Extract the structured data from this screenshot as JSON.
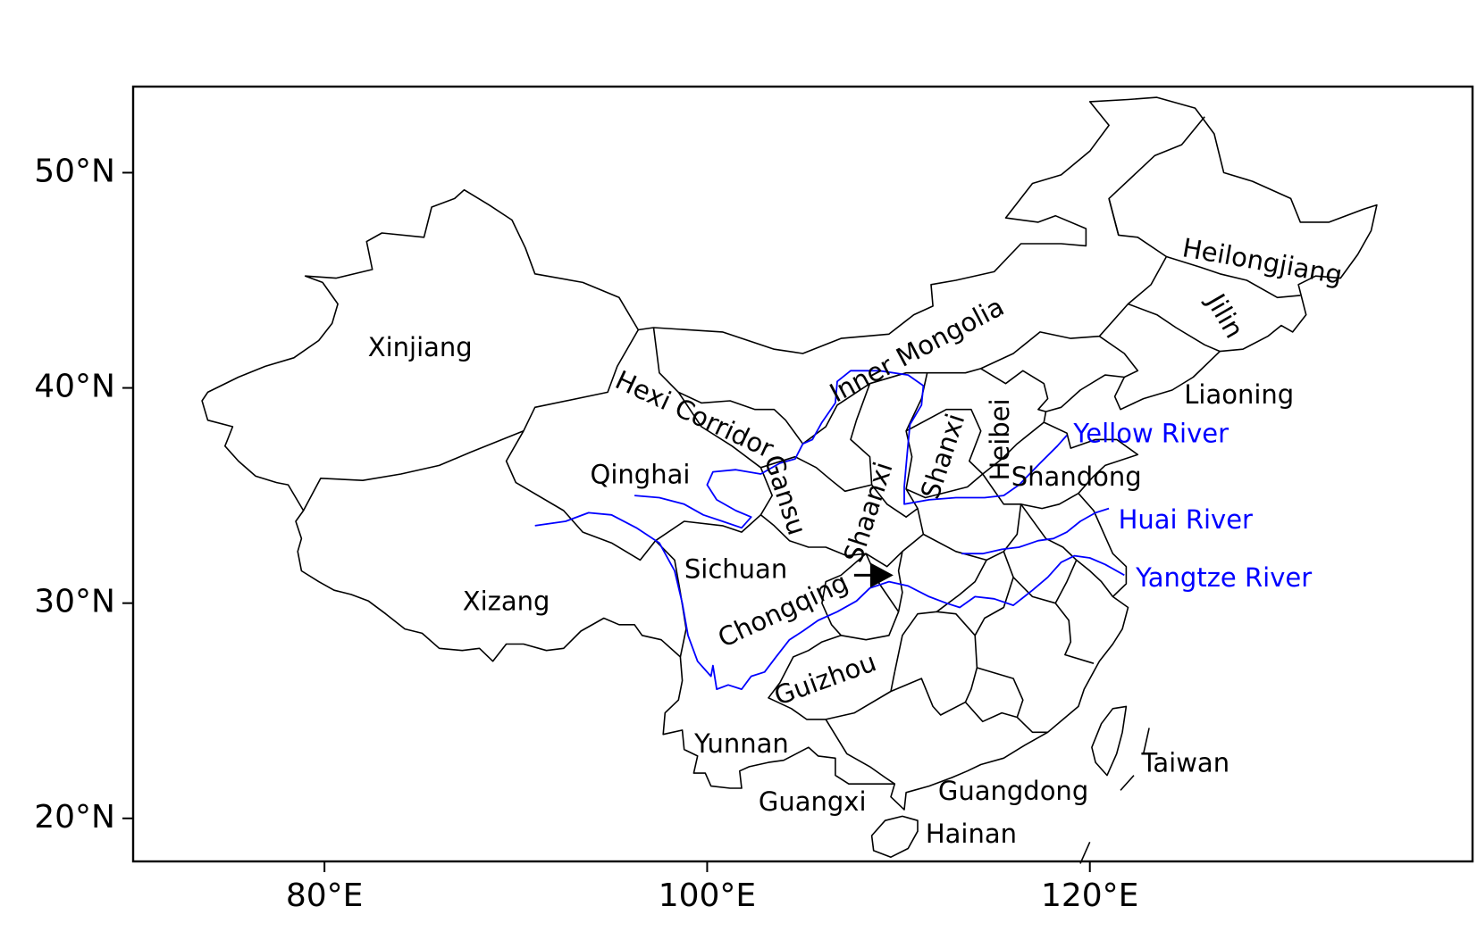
{
  "map": {
    "lon_range": [
      70,
      140
    ],
    "lat_range": [
      18,
      54
    ],
    "x_ticks": [
      {
        "lon": 80,
        "label": "80°E"
      },
      {
        "lon": 100,
        "label": "100°E"
      },
      {
        "lon": 120,
        "label": "120°E"
      }
    ],
    "y_ticks": [
      {
        "lat": 50,
        "label": "50°N"
      },
      {
        "lat": 40,
        "label": "40°N"
      },
      {
        "lat": 30,
        "label": "30°N"
      },
      {
        "lat": 20,
        "label": "20°N"
      }
    ],
    "province_labels": [
      {
        "text": "Xinjiang",
        "lon": 85.0,
        "lat": 41.8,
        "rotate": 0
      },
      {
        "text": "Xizang",
        "lon": 89.5,
        "lat": 30.0,
        "rotate": 0
      },
      {
        "text": "Qinghai",
        "lon": 96.5,
        "lat": 35.9,
        "rotate": 0
      },
      {
        "text": "Hexi Corridor",
        "lon": 99.3,
        "lat": 38.7,
        "rotate": 25
      },
      {
        "text": "Gansu",
        "lon": 104.0,
        "lat": 35.0,
        "rotate": 72
      },
      {
        "text": "Inner Mongolia",
        "lon": 111.0,
        "lat": 41.7,
        "rotate": -28
      },
      {
        "text": "Shaanxi",
        "lon": 108.5,
        "lat": 34.2,
        "rotate": -72
      },
      {
        "text": "Shanxi",
        "lon": 112.4,
        "lat": 36.8,
        "rotate": -72
      },
      {
        "text": "Heibei",
        "lon": 115.4,
        "lat": 37.6,
        "rotate": -90
      },
      {
        "text": "Heilongjiang",
        "lon": 129.0,
        "lat": 45.8,
        "rotate": 10
      },
      {
        "text": "Jilin",
        "lon": 127.0,
        "lat": 43.3,
        "rotate": 60
      },
      {
        "text": "Liaoning",
        "lon": 127.8,
        "lat": 39.6,
        "rotate": 0
      },
      {
        "text": "Shandong",
        "lon": 119.3,
        "lat": 35.8,
        "rotate": 0
      },
      {
        "text": "Sichuan",
        "lon": 101.5,
        "lat": 31.5,
        "rotate": 0
      },
      {
        "text": "Chongqing",
        "lon": 104.0,
        "lat": 29.6,
        "rotate": -25
      },
      {
        "text": "Guizhou",
        "lon": 106.2,
        "lat": 26.4,
        "rotate": -20
      },
      {
        "text": "Yunnan",
        "lon": 101.8,
        "lat": 23.4,
        "rotate": 0
      },
      {
        "text": "Guangxi",
        "lon": 105.5,
        "lat": 20.7,
        "rotate": 0
      },
      {
        "text": "Guangdong",
        "lon": 116.0,
        "lat": 21.2,
        "rotate": 0
      },
      {
        "text": "Hainan",
        "lon": 113.8,
        "lat": 19.2,
        "rotate": 0
      },
      {
        "text": "Taiwan",
        "lon": 125.0,
        "lat": 22.5,
        "rotate": 0
      }
    ],
    "river_labels": [
      {
        "text": "Yellow River",
        "lon": 123.2,
        "lat": 37.8,
        "color": "#0000ff"
      },
      {
        "text": "Huai River",
        "lon": 125.0,
        "lat": 33.8,
        "color": "#0000ff"
      },
      {
        "text": "Yangtze River",
        "lon": 127.0,
        "lat": 31.1,
        "color": "#0000ff"
      }
    ],
    "marker": {
      "lon": 108.8,
      "lat": 31.3,
      "symbol": "arrow-right"
    },
    "colors": {
      "boundary": "#000000",
      "river": "#0000ff"
    }
  }
}
